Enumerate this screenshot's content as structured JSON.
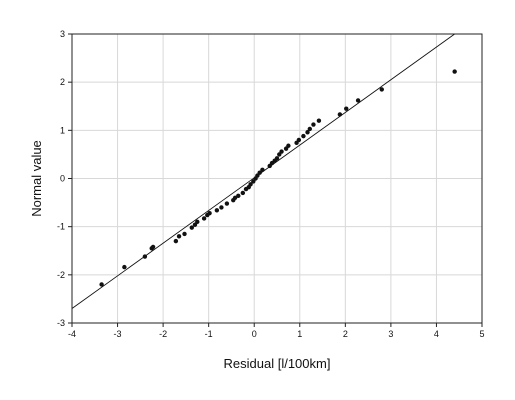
{
  "chart_data": {
    "type": "scatter",
    "title": "",
    "xlabel": "Residual [l/100km]",
    "ylabel": "Normal value",
    "xlim": [
      -4,
      5
    ],
    "ylim": [
      -3,
      3
    ],
    "x_ticks": [
      -4,
      -3,
      -2,
      -1,
      0,
      1,
      2,
      3,
      4,
      5
    ],
    "y_ticks": [
      -3,
      -2,
      -1,
      0,
      1,
      2,
      3
    ],
    "grid": true,
    "legend": "none",
    "colors": {
      "points": "#111111",
      "reference_line": "#111111",
      "grid": "#d8d8d8",
      "frame": "#222222"
    },
    "reference_line": {
      "x": [
        -4,
        4.4
      ],
      "y": [
        -2.7,
        3.0
      ]
    },
    "series": [
      {
        "values": [
          [
            -3.35,
            -2.2
          ],
          [
            -2.85,
            -1.84
          ],
          [
            -2.4,
            -1.62
          ],
          [
            -2.25,
            -1.45
          ],
          [
            -2.22,
            -1.42
          ],
          [
            -1.72,
            -1.3
          ],
          [
            -1.65,
            -1.2
          ],
          [
            -1.53,
            -1.15
          ],
          [
            -1.37,
            -1.02
          ],
          [
            -1.3,
            -0.96
          ],
          [
            -1.25,
            -0.9
          ],
          [
            -1.1,
            -0.83
          ],
          [
            -1.03,
            -0.76
          ],
          [
            -0.98,
            -0.72
          ],
          [
            -0.82,
            -0.66
          ],
          [
            -0.72,
            -0.6
          ],
          [
            -0.6,
            -0.52
          ],
          [
            -0.46,
            -0.45
          ],
          [
            -0.42,
            -0.4
          ],
          [
            -0.35,
            -0.36
          ],
          [
            -0.25,
            -0.3
          ],
          [
            -0.18,
            -0.22
          ],
          [
            -0.12,
            -0.18
          ],
          [
            -0.08,
            -0.12
          ],
          [
            -0.02,
            -0.06
          ],
          [
            0.03,
            0.0
          ],
          [
            0.07,
            0.06
          ],
          [
            0.12,
            0.12
          ],
          [
            0.18,
            0.18
          ],
          [
            0.34,
            0.26
          ],
          [
            0.39,
            0.32
          ],
          [
            0.45,
            0.37
          ],
          [
            0.5,
            0.42
          ],
          [
            0.55,
            0.5
          ],
          [
            0.6,
            0.56
          ],
          [
            0.7,
            0.62
          ],
          [
            0.75,
            0.68
          ],
          [
            0.93,
            0.74
          ],
          [
            0.98,
            0.8
          ],
          [
            1.08,
            0.88
          ],
          [
            1.17,
            0.96
          ],
          [
            1.22,
            1.03
          ],
          [
            1.3,
            1.12
          ],
          [
            1.42,
            1.2
          ],
          [
            1.88,
            1.33
          ],
          [
            2.02,
            1.45
          ],
          [
            2.28,
            1.62
          ],
          [
            2.8,
            1.85
          ],
          [
            4.4,
            2.22
          ]
        ]
      }
    ]
  }
}
